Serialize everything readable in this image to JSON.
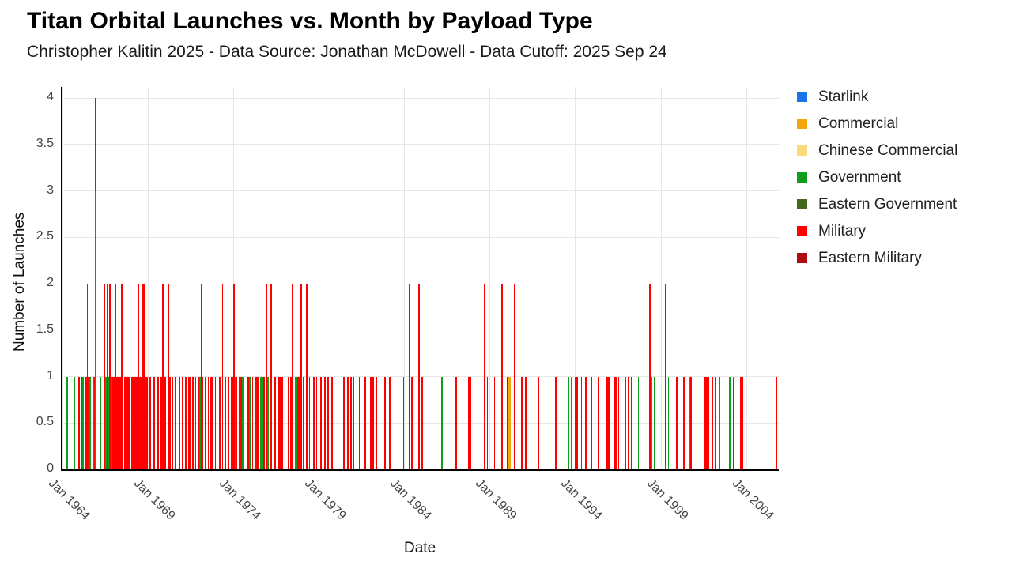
{
  "chart_data": {
    "type": "bar",
    "stacked": true,
    "title": "Titan Orbital Launches vs. Month by Payload Type",
    "subtitle": "Christopher Kalitin 2025 - Data Source: Jonathan McDowell - Data Cutoff: 2025 Sep 24",
    "xlabel": "Date",
    "ylabel": "Number of Launches",
    "ylim": [
      0,
      4
    ],
    "yticks": [
      "0",
      "0.5",
      "1",
      "1.5",
      "2",
      "2.5",
      "3",
      "3.5",
      "4"
    ],
    "grid": true,
    "legend_position": "right",
    "x_domain": {
      "start": "1964-01",
      "end": "2005-11",
      "months": 503
    },
    "xticks": [
      {
        "label": "Jan 1964",
        "month_index": 0
      },
      {
        "label": "Jan 1969",
        "month_index": 60
      },
      {
        "label": "Jan 1974",
        "month_index": 120
      },
      {
        "label": "Jan 1979",
        "month_index": 180
      },
      {
        "label": "Jan 1984",
        "month_index": 240
      },
      {
        "label": "Jan 1989",
        "month_index": 300
      },
      {
        "label": "Jan 1994",
        "month_index": 360
      },
      {
        "label": "Jan 1999",
        "month_index": 420
      },
      {
        "label": "Jan 2004",
        "month_index": 480
      }
    ],
    "series": [
      {
        "name": "Starlink",
        "color": "#1a73e8"
      },
      {
        "name": "Commercial",
        "color": "#f2a60c"
      },
      {
        "name": "Chinese Commercial",
        "color": "#fbd97d"
      },
      {
        "name": "Government",
        "color": "#0f9d1c"
      },
      {
        "name": "Eastern Government",
        "color": "#44691d"
      },
      {
        "name": "Military",
        "color": "#ff0000"
      },
      {
        "name": "Eastern Military",
        "color": "#ae0c10"
      }
    ],
    "code_map": {
      "G": "Government",
      "M": "Military",
      "C": "Commercial"
    },
    "bars": [
      [
        "1964-04",
        "G1"
      ],
      [
        "1964-09",
        "G1"
      ],
      [
        "1964-12",
        "M1"
      ],
      [
        "1965-02",
        "M1"
      ],
      [
        "1965-03",
        "G1"
      ],
      [
        "1965-05",
        "M1"
      ],
      [
        "1965-06",
        "M2"
      ],
      [
        "1965-07",
        "M1"
      ],
      [
        "1965-08",
        "G1"
      ],
      [
        "1965-10",
        "G1"
      ],
      [
        "1965-11",
        "M1"
      ],
      [
        "1965-12",
        "G3M1"
      ],
      [
        "1966-03",
        "G1"
      ],
      [
        "1966-06",
        "M2"
      ],
      [
        "1966-07",
        "G1"
      ],
      [
        "1966-08",
        "M2"
      ],
      [
        "1966-09",
        "G1"
      ],
      [
        "1966-10",
        "M2"
      ],
      [
        "1966-11",
        "G1"
      ],
      [
        "1966-12",
        "M1"
      ],
      [
        "1967-01",
        "M1"
      ],
      [
        "1967-02",
        "M2"
      ],
      [
        "1967-03",
        "M1"
      ],
      [
        "1967-04",
        "M1"
      ],
      [
        "1967-05",
        "M1"
      ],
      [
        "1967-06",
        "M2"
      ],
      [
        "1967-07",
        "M1"
      ],
      [
        "1967-08",
        "M1"
      ],
      [
        "1967-09",
        "M1"
      ],
      [
        "1967-10",
        "M1"
      ],
      [
        "1967-11",
        "M1"
      ],
      [
        "1967-12",
        "M1"
      ],
      [
        "1968-01",
        "M1"
      ],
      [
        "1968-02",
        "M1"
      ],
      [
        "1968-03",
        "M1"
      ],
      [
        "1968-04",
        "M1"
      ],
      [
        "1968-05",
        "M1"
      ],
      [
        "1968-06",
        "M2"
      ],
      [
        "1968-07",
        "M1"
      ],
      [
        "1968-08",
        "M1"
      ],
      [
        "1968-09",
        "M2"
      ],
      [
        "1968-10",
        "M2"
      ],
      [
        "1968-11",
        "M1"
      ],
      [
        "1968-12",
        "M1"
      ],
      [
        "1969-02",
        "M1"
      ],
      [
        "1969-04",
        "M1"
      ],
      [
        "1969-05",
        "M1"
      ],
      [
        "1969-07",
        "M1"
      ],
      [
        "1969-08",
        "M1"
      ],
      [
        "1969-09",
        "M2"
      ],
      [
        "1969-10",
        "M1"
      ],
      [
        "1969-11",
        "M2"
      ],
      [
        "1969-12",
        "M1"
      ],
      [
        "1970-01",
        "M1"
      ],
      [
        "1970-03",
        "M2"
      ],
      [
        "1970-04",
        "M1"
      ],
      [
        "1970-06",
        "M1"
      ],
      [
        "1970-08",
        "M1"
      ],
      [
        "1970-11",
        "M1"
      ],
      [
        "1971-01",
        "M1"
      ],
      [
        "1971-03",
        "M1"
      ],
      [
        "1971-05",
        "M1"
      ],
      [
        "1971-06",
        "M1"
      ],
      [
        "1971-08",
        "M1"
      ],
      [
        "1971-10",
        "M1"
      ],
      [
        "1971-12",
        "M1"
      ],
      [
        "1972-01",
        "G1"
      ],
      [
        "1972-02",
        "M2"
      ],
      [
        "1972-03",
        "M1"
      ],
      [
        "1972-05",
        "M1"
      ],
      [
        "1972-07",
        "M1"
      ],
      [
        "1972-09",
        "M1"
      ],
      [
        "1972-10",
        "M1"
      ],
      [
        "1972-12",
        "M1"
      ],
      [
        "1973-01",
        "M1"
      ],
      [
        "1973-03",
        "M1"
      ],
      [
        "1973-05",
        "M2"
      ],
      [
        "1973-07",
        "M1"
      ],
      [
        "1973-09",
        "M1"
      ],
      [
        "1973-11",
        "M1"
      ],
      [
        "1973-12",
        "M1"
      ],
      [
        "1974-01",
        "M2"
      ],
      [
        "1974-02",
        "G1"
      ],
      [
        "1974-03",
        "M1"
      ],
      [
        "1974-05",
        "M1"
      ],
      [
        "1974-06",
        "M1"
      ],
      [
        "1974-07",
        "G1"
      ],
      [
        "1974-11",
        "M1"
      ],
      [
        "1974-12",
        "G1"
      ],
      [
        "1975-02",
        "M1"
      ],
      [
        "1975-04",
        "M1"
      ],
      [
        "1975-05",
        "M1"
      ],
      [
        "1975-06",
        "M1"
      ],
      [
        "1975-08",
        "G1"
      ],
      [
        "1975-09",
        "G1"
      ],
      [
        "1975-10",
        "M1"
      ],
      [
        "1975-12",
        "M2"
      ],
      [
        "1976-01",
        "G1"
      ],
      [
        "1976-03",
        "M2"
      ],
      [
        "1976-06",
        "M1"
      ],
      [
        "1976-08",
        "M1"
      ],
      [
        "1976-09",
        "M1"
      ],
      [
        "1976-11",
        "M1"
      ],
      [
        "1977-03",
        "M1"
      ],
      [
        "1977-05",
        "M1"
      ],
      [
        "1977-06",
        "M2"
      ],
      [
        "1977-08",
        "G1"
      ],
      [
        "1977-09",
        "G1"
      ],
      [
        "1977-10",
        "M1"
      ],
      [
        "1977-11",
        "M1"
      ],
      [
        "1977-12",
        "M2"
      ],
      [
        "1978-02",
        "M1"
      ],
      [
        "1978-04",
        "M2"
      ],
      [
        "1978-06",
        "M1"
      ],
      [
        "1978-09",
        "M1"
      ],
      [
        "1978-11",
        "M1"
      ],
      [
        "1979-02",
        "M1"
      ],
      [
        "1979-05",
        "M1"
      ],
      [
        "1979-07",
        "M1"
      ],
      [
        "1979-10",
        "M1"
      ],
      [
        "1980-02",
        "M1"
      ],
      [
        "1980-06",
        "M1"
      ],
      [
        "1980-09",
        "M1"
      ],
      [
        "1980-11",
        "M1"
      ],
      [
        "1981-01",
        "M1"
      ],
      [
        "1981-05",
        "M1"
      ],
      [
        "1981-09",
        "M1"
      ],
      [
        "1981-11",
        "M1"
      ],
      [
        "1982-01",
        "M1"
      ],
      [
        "1982-02",
        "M1"
      ],
      [
        "1982-03",
        "M1"
      ],
      [
        "1982-05",
        "M1"
      ],
      [
        "1982-11",
        "M1"
      ],
      [
        "1983-02",
        "M1"
      ],
      [
        "1983-03",
        "M1"
      ],
      [
        "1983-12",
        "M1"
      ],
      [
        "1984-04",
        "M2"
      ],
      [
        "1984-06",
        "M1"
      ],
      [
        "1984-11",
        "M2"
      ],
      [
        "1985-01",
        "M1"
      ],
      [
        "1985-08",
        "G1"
      ],
      [
        "1986-03",
        "G1"
      ],
      [
        "1987-01",
        "M1"
      ],
      [
        "1987-10",
        "M1"
      ],
      [
        "1987-11",
        "M1"
      ],
      [
        "1988-09",
        "M2"
      ],
      [
        "1988-11",
        "M1"
      ],
      [
        "1989-04",
        "M1"
      ],
      [
        "1989-09",
        "M2"
      ],
      [
        "1990-01",
        "M1"
      ],
      [
        "1990-02",
        "C1"
      ],
      [
        "1990-03",
        "C1"
      ],
      [
        "1990-06",
        "M2"
      ],
      [
        "1990-11",
        "M1"
      ],
      [
        "1991-02",
        "M1"
      ],
      [
        "1991-11",
        "M1"
      ],
      [
        "1992-04",
        "M1"
      ],
      [
        "1992-09",
        "C1"
      ],
      [
        "1992-11",
        "M1"
      ],
      [
        "1993-08",
        "G1"
      ],
      [
        "1993-10",
        "G1"
      ],
      [
        "1994-01",
        "M1"
      ],
      [
        "1994-02",
        "M1"
      ],
      [
        "1994-05",
        "M1"
      ],
      [
        "1994-08",
        "M1"
      ],
      [
        "1994-12",
        "M1"
      ],
      [
        "1995-05",
        "M1"
      ],
      [
        "1995-11",
        "M1"
      ],
      [
        "1995-12",
        "M1"
      ],
      [
        "1996-04",
        "M1"
      ],
      [
        "1996-05",
        "M1"
      ],
      [
        "1996-07",
        "M1"
      ],
      [
        "1996-12",
        "M1"
      ],
      [
        "1997-02",
        "M1"
      ],
      [
        "1997-04",
        "M1"
      ],
      [
        "1997-09",
        "G1"
      ],
      [
        "1997-10",
        "M2"
      ],
      [
        "1998-05",
        "M2"
      ],
      [
        "1998-06",
        "G1"
      ],
      [
        "1998-08",
        "G1"
      ],
      [
        "1999-04",
        "M2"
      ],
      [
        "1999-06",
        "G1"
      ],
      [
        "1999-12",
        "M1"
      ],
      [
        "2000-05",
        "M1"
      ],
      [
        "2000-09",
        "G1"
      ],
      [
        "2000-10",
        "M1"
      ],
      [
        "2001-08",
        "M1"
      ],
      [
        "2001-09",
        "M1"
      ],
      [
        "2001-10",
        "M1"
      ],
      [
        "2002-01",
        "M1"
      ],
      [
        "2002-03",
        "M1"
      ],
      [
        "2002-06",
        "G1"
      ],
      [
        "2003-01",
        "G1"
      ],
      [
        "2003-04",
        "M1"
      ],
      [
        "2003-09",
        "M1"
      ],
      [
        "2003-10",
        "M1"
      ],
      [
        "2005-04",
        "M1"
      ],
      [
        "2005-10",
        "M1"
      ]
    ]
  }
}
